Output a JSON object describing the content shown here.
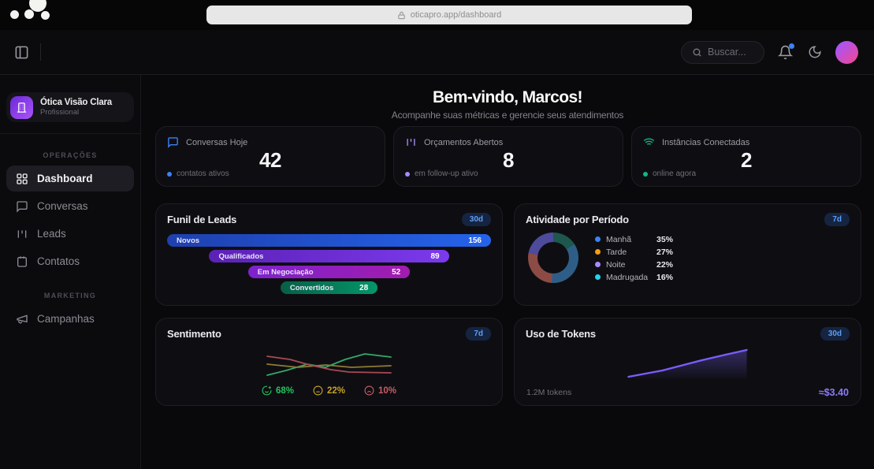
{
  "browser": {
    "url": "oticapro.app/dashboard"
  },
  "header": {
    "search_placeholder": "Buscar..."
  },
  "sidebar": {
    "brand": {
      "name": "Ótica Visão Clara",
      "plan": "Profissional"
    },
    "sections": [
      {
        "label": "OPERAÇÕES",
        "items": [
          {
            "label": "Dashboard",
            "active": true
          },
          {
            "label": "Conversas",
            "active": false
          },
          {
            "label": "Leads",
            "active": false
          },
          {
            "label": "Contatos",
            "active": false
          }
        ]
      },
      {
        "label": "MARKETING",
        "items": [
          {
            "label": "Campanhas",
            "active": false
          }
        ]
      }
    ]
  },
  "welcome": {
    "title": "Bem-vindo, Marcos!",
    "subtitle": "Acompanhe suas métricas e gerencie seus atendimentos"
  },
  "stats": [
    {
      "label": "Conversas Hoje",
      "value": "42",
      "footnote": "contatos ativos",
      "accent": "#3b82f6"
    },
    {
      "label": "Orçamentos Abertos",
      "value": "8",
      "footnote": "em follow-up ativo",
      "accent": "#a78bfa"
    },
    {
      "label": "Instâncias Conectadas",
      "value": "2",
      "footnote": "online agora",
      "accent": "#10b981"
    }
  ],
  "funnel": {
    "title": "Funil de Leads",
    "badge": "30d",
    "chart_data": {
      "type": "bar",
      "categories": [
        "Novos",
        "Qualificados",
        "Em Negociação",
        "Convertidos"
      ],
      "values": [
        156,
        89,
        52,
        28
      ]
    },
    "stages": [
      {
        "label": "Novos",
        "value": "156",
        "width_pct": 100,
        "color_from": "#1e40af",
        "color_to": "#2563eb"
      },
      {
        "label": "Qualificados",
        "value": "89",
        "width_pct": 74,
        "color_from": "#5b21b6",
        "color_to": "#7c3aed"
      },
      {
        "label": "Em Negociação",
        "value": "52",
        "width_pct": 50,
        "color_from": "#7e22ce",
        "color_to": "#a21caf"
      },
      {
        "label": "Convertidos",
        "value": "28",
        "width_pct": 30,
        "color_from": "#065f46",
        "color_to": "#059669"
      }
    ]
  },
  "activity": {
    "title": "Atividade por Período",
    "badge": "7d",
    "chart_data": {
      "type": "pie",
      "categories": [
        "Manhã",
        "Tarde",
        "Noite",
        "Madrugada"
      ],
      "values": [
        35,
        27,
        22,
        16
      ]
    },
    "segments": [
      {
        "label": "Manhã",
        "value": "35%",
        "pct": 35,
        "dot_color": "#3b82f6"
      },
      {
        "label": "Tarde",
        "value": "27%",
        "pct": 27,
        "dot_color": "#f59e0b"
      },
      {
        "label": "Noite",
        "value": "22%",
        "pct": 22,
        "dot_color": "#a78bfa"
      },
      {
        "label": "Madrugada",
        "value": "16%",
        "pct": 16,
        "dot_color": "#22d3ee"
      }
    ],
    "arcs": [
      {
        "color": "#1e574e",
        "pct": 16
      },
      {
        "color": "#2e5e87",
        "pct": 35
      },
      {
        "color": "#8c4b45",
        "pct": 27
      },
      {
        "color": "#4e4a9c",
        "pct": 22
      }
    ]
  },
  "sentiment": {
    "title": "Sentimento",
    "badge": "7d",
    "chart_data": {
      "type": "line",
      "series": [
        {
          "name": "positivo",
          "pct": 68
        },
        {
          "name": "neutro",
          "pct": 22
        },
        {
          "name": "negativo",
          "pct": 10
        }
      ]
    },
    "series": [
      {
        "name": "positivo",
        "color": "#35a869",
        "points": [
          [
            1,
            32
          ],
          [
            25,
            26
          ],
          [
            52,
            18
          ],
          [
            75,
            22
          ],
          [
            100,
            12
          ],
          [
            125,
            5
          ],
          [
            158,
            9
          ]
        ]
      },
      {
        "name": "neutro",
        "color": "#8f7a35",
        "points": [
          [
            1,
            18
          ],
          [
            40,
            22
          ],
          [
            75,
            19
          ],
          [
            108,
            22
          ],
          [
            158,
            20
          ]
        ]
      },
      {
        "name": "negativo",
        "color": "#a84a55",
        "points": [
          [
            1,
            8
          ],
          [
            30,
            12
          ],
          [
            55,
            19
          ],
          [
            82,
            25
          ],
          [
            105,
            28
          ],
          [
            158,
            29
          ]
        ]
      }
    ],
    "stats": [
      {
        "value": "68%",
        "color": "#22c55e"
      },
      {
        "value": "22%",
        "color": "#c9a227"
      },
      {
        "value": "10%",
        "color": "#c75d66"
      }
    ]
  },
  "tokens": {
    "title": "Uso de Tokens",
    "badge": "30d",
    "total": "1.2M tokens",
    "cost": "≈$3.40",
    "line_color": "#7c5cfc",
    "chart_data": {
      "type": "area",
      "trend": "rising",
      "total_tokens": "1.2M",
      "approx_cost_usd": 3.4
    },
    "points": [
      [
        2,
        36
      ],
      [
        45,
        28
      ],
      [
        72,
        21
      ],
      [
        95,
        15
      ],
      [
        125,
        8
      ],
      [
        152,
        2
      ]
    ]
  }
}
